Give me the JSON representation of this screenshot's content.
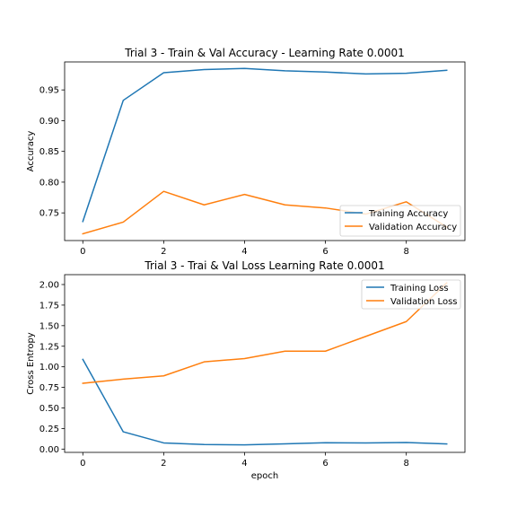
{
  "chart_data": [
    {
      "type": "line",
      "title": "Trial 3 - Train & Val Accuracy - Learning Rate 0.0001",
      "xlabel": "",
      "ylabel": "Accuracy",
      "x": [
        0,
        1,
        2,
        3,
        4,
        5,
        6,
        7,
        8,
        9
      ],
      "xlim": [
        -0.45,
        9.45
      ],
      "ylim": [
        0.705,
        0.9955
      ],
      "xticks": [
        0,
        2,
        4,
        6,
        8
      ],
      "yticks": [
        0.75,
        0.8,
        0.85,
        0.9,
        0.95
      ],
      "ytick_labels": [
        "0.75",
        "0.80",
        "0.85",
        "0.90",
        "0.95"
      ],
      "grid": false,
      "legend_position": "lower-right",
      "series": [
        {
          "name": "Training Accuracy",
          "color": "#1f77b4",
          "values": [
            0.736,
            0.933,
            0.978,
            0.983,
            0.985,
            0.981,
            0.979,
            0.976,
            0.977,
            0.982
          ]
        },
        {
          "name": "Validation Accuracy",
          "color": "#ff7f0e",
          "values": [
            0.716,
            0.735,
            0.785,
            0.763,
            0.78,
            0.763,
            0.758,
            0.748,
            0.768,
            0.727
          ]
        }
      ]
    },
    {
      "type": "line",
      "title": "Trial 3 - Trai & Val Loss Learning Rate 0.0001",
      "xlabel": "epoch",
      "ylabel": "Cross Entropy",
      "x": [
        0,
        1,
        2,
        3,
        4,
        5,
        6,
        7,
        8,
        9
      ],
      "xlim": [
        -0.45,
        9.45
      ],
      "ylim": [
        -0.04,
        2.12
      ],
      "xticks": [
        0,
        2,
        4,
        6,
        8
      ],
      "yticks": [
        0.0,
        0.25,
        0.5,
        0.75,
        1.0,
        1.25,
        1.5,
        1.75,
        2.0
      ],
      "ytick_labels": [
        "0.00",
        "0.25",
        "0.50",
        "0.75",
        "1.00",
        "1.25",
        "1.50",
        "1.75",
        "2.00"
      ],
      "grid": false,
      "legend_position": "upper-right",
      "series": [
        {
          "name": "Training Loss",
          "color": "#1f77b4",
          "values": [
            1.09,
            0.21,
            0.075,
            0.055,
            0.052,
            0.063,
            0.077,
            0.075,
            0.08,
            0.062
          ]
        },
        {
          "name": "Validation Loss",
          "color": "#ff7f0e",
          "values": [
            0.8,
            0.85,
            0.89,
            1.06,
            1.1,
            1.19,
            1.19,
            1.37,
            1.55,
            2.02
          ]
        }
      ]
    }
  ]
}
